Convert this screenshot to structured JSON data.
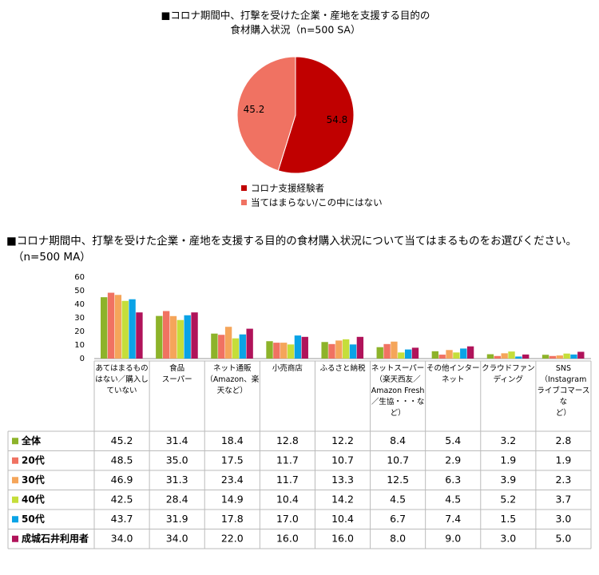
{
  "chart_data": [
    {
      "type": "pie",
      "title": [
        "■コロナ期間中、打撃を受けた企業・産地を支援する目的の",
        "食材購入状況（n=500 SA）"
      ],
      "categories": [
        "コロナ支援経験者",
        "当てはまらない/この中にはない"
      ],
      "values": [
        54.8,
        45.2
      ],
      "colors": [
        "#c00000",
        "#f07262"
      ]
    },
    {
      "type": "bar",
      "title": "■コロナ期間中、打撃を受けた企業・産地を支援する目的の食材購入状況について当てはまるものをお選びください。",
      "subtitle": "（n=500 MA）",
      "categories": [
        "あてはまるもの\nはない／購入し\nていない",
        "食品\nスーパー",
        "ネット通販\n（Amazon、楽\n天など）",
        "小売商店",
        "ふるさと納税",
        "ネットスーパー\n（楽天西友／\nAmazon Fresh\n／生協・・・な\nど）",
        "その他インター\nネット",
        "クラウドファン\nディング",
        "SNS\n（Instagram\nライブコマースな\nど）"
      ],
      "ylim": [
        0,
        60
      ],
      "yticks": [
        0,
        10,
        20,
        30,
        40,
        50,
        60
      ],
      "grid": false,
      "series": [
        {
          "name": "全体",
          "color": "#8db32a",
          "values": [
            45.2,
            31.4,
            18.4,
            12.8,
            12.2,
            8.4,
            5.4,
            3.2,
            2.8
          ],
          "value_labels": [
            "45.2",
            "31.4",
            "18.4",
            "12.8",
            "12.2",
            "8.4",
            "5.4",
            "3.2",
            "2.8"
          ]
        },
        {
          "name": "20代",
          "color": "#f07262",
          "values": [
            48.5,
            35.0,
            17.5,
            11.7,
            10.7,
            10.7,
            2.9,
            1.9,
            1.9
          ],
          "value_labels": [
            "48.5",
            "35.0",
            "17.5",
            "11.7",
            "10.7",
            "10.7",
            "2.9",
            "1.9",
            "1.9"
          ]
        },
        {
          "name": "30代",
          "color": "#f5a55a",
          "values": [
            46.9,
            31.3,
            23.4,
            11.7,
            13.3,
            12.5,
            6.3,
            3.9,
            2.3
          ],
          "value_labels": [
            "46.9",
            "31.3",
            "23.4",
            "11.7",
            "13.3",
            "12.5",
            "6.3",
            "3.9",
            "2.3"
          ]
        },
        {
          "name": "40代",
          "color": "#c5de3a",
          "values": [
            42.5,
            28.4,
            14.9,
            10.4,
            14.2,
            4.5,
            4.5,
            5.2,
            3.7
          ],
          "value_labels": [
            "42.5",
            "28.4",
            "14.9",
            "10.4",
            "14.2",
            "4.5",
            "4.5",
            "5.2",
            "3.7"
          ]
        },
        {
          "name": "50代",
          "color": "#0aa3e6",
          "values": [
            43.7,
            31.9,
            17.8,
            17.0,
            10.4,
            6.7,
            7.4,
            1.5,
            3.0
          ],
          "value_labels": [
            "43.7",
            "31.9",
            "17.8",
            "17.0",
            "10.4",
            "6.7",
            "7.4",
            "1.5",
            "3.0"
          ]
        },
        {
          "name": "成城石井利用者",
          "color": "#b0135a",
          "values": [
            34.0,
            34.0,
            22.0,
            16.0,
            16.0,
            8.0,
            9.0,
            3.0,
            5.0
          ],
          "value_labels": [
            "34.0",
            "34.0",
            "22.0",
            "16.0",
            "16.0",
            "8.0",
            "9.0",
            "3.0",
            "5.0"
          ]
        }
      ]
    }
  ]
}
